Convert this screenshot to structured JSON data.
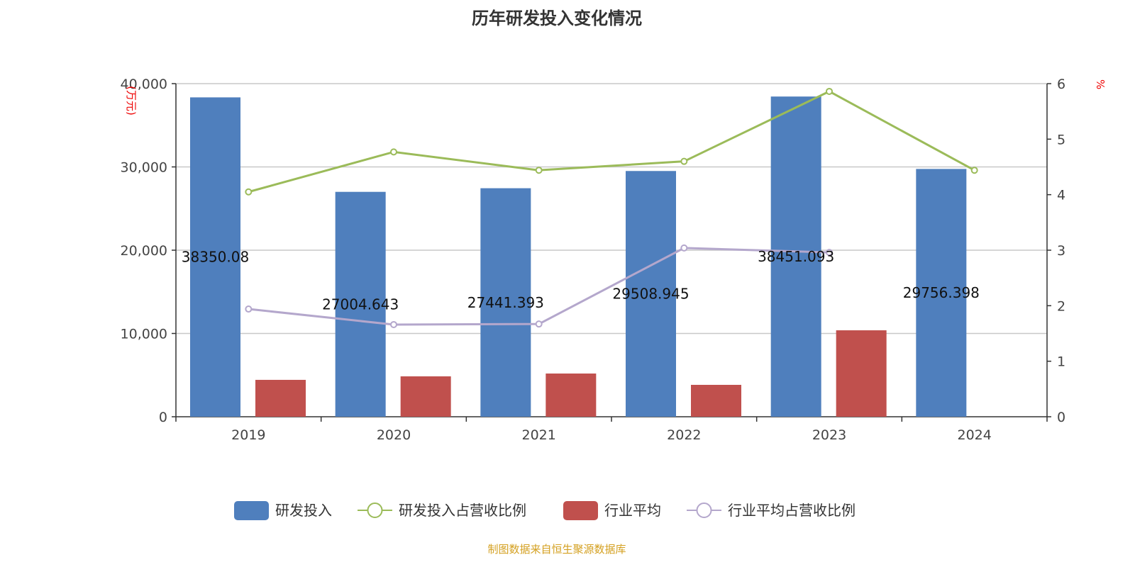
{
  "chart_data": {
    "type": "bar",
    "title": "历年研发投入变化情况",
    "categories": [
      "2019",
      "2020",
      "2021",
      "2022",
      "2023",
      "2024"
    ],
    "y_left": {
      "label": "(万元)",
      "range": [
        0,
        40000
      ],
      "ticks": [
        "0",
        "10,000",
        "20,000",
        "30,000",
        "40,000"
      ],
      "tick_values": [
        0,
        10000,
        20000,
        30000,
        40000
      ]
    },
    "y_right": {
      "label": "%",
      "range": [
        0,
        6
      ],
      "ticks": [
        "0",
        "1",
        "2",
        "3",
        "4",
        "5",
        "6"
      ]
    },
    "grid": true,
    "legend_placement": "bottom",
    "series": [
      {
        "name": "研发投入",
        "type": "bar",
        "axis": "left",
        "color": "#4f7fbd",
        "values": [
          38350.08,
          27004.643,
          27441.393,
          29508.945,
          38451.093,
          29756.398
        ],
        "labels": [
          "38350.08",
          "27004.643",
          "27441.393",
          "29508.945",
          "38451.093",
          "29756.398"
        ]
      },
      {
        "name": "研发投入占营收比例",
        "type": "line",
        "axis": "right",
        "color": "#9bbb59",
        "values": [
          4.05,
          4.77,
          4.44,
          4.6,
          5.86,
          4.44
        ]
      },
      {
        "name": "行业平均",
        "type": "bar",
        "axis": "left",
        "color": "#c0504d",
        "values": [
          4430,
          4850,
          5190,
          3830,
          10380,
          null
        ]
      },
      {
        "name": "行业平均占营收比例",
        "type": "line",
        "axis": "right",
        "color": "#b4a7cc",
        "values": [
          1.94,
          1.66,
          1.67,
          3.04,
          2.96,
          null
        ]
      }
    ]
  },
  "source": "制图数据来自恒生聚源数据库"
}
